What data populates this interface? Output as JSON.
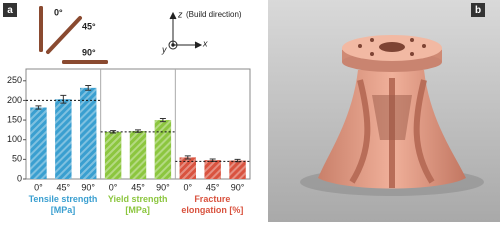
{
  "panel_labels": [
    "a",
    "b"
  ],
  "specimen_angles": [
    "0°",
    "45°",
    "90°"
  ],
  "axes_diagram": {
    "z": "z",
    "note": "(Build direction)",
    "y": "y",
    "x": "x"
  },
  "chart_data": {
    "type": "bar",
    "categories": [
      "0°",
      "45°",
      "90°"
    ],
    "series": [
      {
        "name": "Tensile strength [MPa]",
        "color": "#3a9fd0",
        "values": [
          182,
          203,
          232
        ],
        "errors": [
          4,
          10,
          6
        ],
        "reference": 200
      },
      {
        "name": "Yield strength [MPa]",
        "color": "#8cc63f",
        "values": [
          120,
          122,
          150
        ],
        "errors": [
          3,
          3,
          4
        ],
        "reference": 120
      },
      {
        "name": "Fracture elongation [%]",
        "color": "#d9533f",
        "values": [
          55,
          48,
          47
        ],
        "errors": [
          4,
          3,
          3
        ],
        "reference": 45
      }
    ],
    "ylim": [
      0,
      280
    ],
    "yticks": [
      0,
      50,
      100,
      150,
      200,
      250
    ],
    "grid": false
  }
}
